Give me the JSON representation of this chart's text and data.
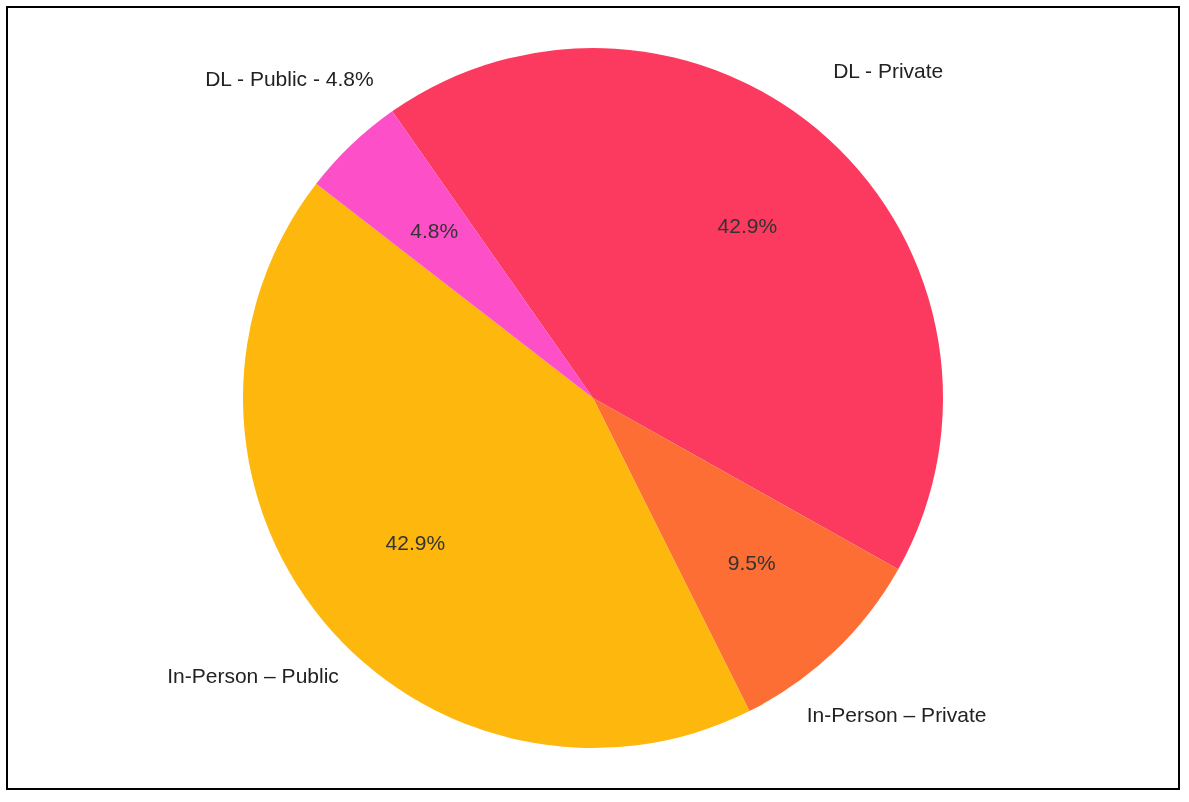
{
  "chart_data": {
    "type": "pie",
    "categories": [
      "DL - Private",
      "In-Person – Private",
      "In-Person – Public",
      "DL - Public - 4.8%"
    ],
    "values": [
      42.9,
      9.5,
      42.9,
      4.8
    ],
    "colors": [
      "#fc3a5f",
      "#fd6e35",
      "#fdb70d",
      "#fd4fc7"
    ],
    "value_labels": [
      "42.9%",
      "9.5%",
      "42.9%",
      "4.8%"
    ]
  }
}
